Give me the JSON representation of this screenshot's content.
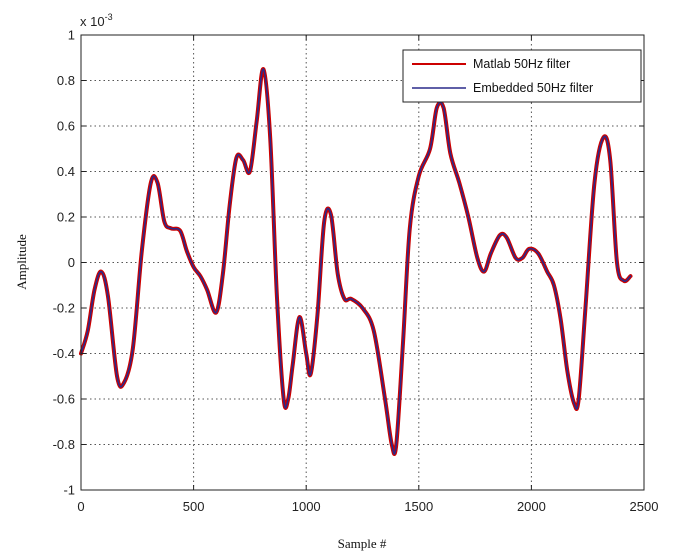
{
  "chart_data": {
    "type": "line",
    "title": "",
    "xlabel": "Sample #",
    "ylabel": "Amplitude",
    "y_scale_label": "x 10",
    "y_scale_exponent": "-3",
    "xlim": [
      0,
      2500
    ],
    "ylim": [
      -1,
      1
    ],
    "x_ticks": [
      0,
      500,
      1000,
      1500,
      2000,
      2500
    ],
    "x_tick_labels": [
      "0",
      "500",
      "1000",
      "1500",
      "2000",
      "2500"
    ],
    "y_ticks": [
      -1,
      -0.8,
      -0.6,
      -0.4,
      -0.2,
      0,
      0.2,
      0.4,
      0.6,
      0.8,
      1
    ],
    "y_tick_labels": [
      "-1",
      "-0.8",
      "-0.6",
      "-0.4",
      "-0.2",
      "0",
      "0.2",
      "0.4",
      "0.6",
      "0.8",
      "1"
    ],
    "grid": true,
    "legend_position": "top-right",
    "series": [
      {
        "name": "Matlab 50Hz filter",
        "color": "#cc0000",
        "x": [
          0,
          30,
          60,
          90,
          120,
          160,
          190,
          230,
          270,
          310,
          340,
          370,
          400,
          440,
          470,
          500,
          530,
          560,
          600,
          630,
          660,
          690,
          720,
          750,
          780,
          810,
          840,
          870,
          900,
          920,
          940,
          970,
          1000,
          1020,
          1050,
          1080,
          1110,
          1140,
          1170,
          1200,
          1250,
          1300,
          1350,
          1380,
          1400,
          1430,
          1460,
          1500,
          1550,
          1580,
          1610,
          1640,
          1680,
          1720,
          1760,
          1790,
          1820,
          1860,
          1890,
          1930,
          1960,
          1990,
          2030,
          2070,
          2100,
          2130,
          2160,
          2190,
          2210,
          2240,
          2280,
          2320,
          2350,
          2380,
          2410,
          2440
        ],
        "values": [
          -0.4,
          -0.3,
          -0.12,
          -0.04,
          -0.15,
          -0.5,
          -0.53,
          -0.38,
          0.05,
          0.35,
          0.35,
          0.18,
          0.15,
          0.14,
          0.05,
          -0.02,
          -0.06,
          -0.12,
          -0.22,
          -0.05,
          0.25,
          0.46,
          0.45,
          0.4,
          0.62,
          0.85,
          0.55,
          -0.15,
          -0.6,
          -0.6,
          -0.45,
          -0.24,
          -0.4,
          -0.49,
          -0.23,
          0.18,
          0.21,
          -0.05,
          -0.16,
          -0.16,
          -0.2,
          -0.3,
          -0.6,
          -0.8,
          -0.8,
          -0.35,
          0.15,
          0.38,
          0.5,
          0.68,
          0.68,
          0.48,
          0.35,
          0.2,
          0.02,
          -0.04,
          0.04,
          0.12,
          0.11,
          0.02,
          0.02,
          0.06,
          0.04,
          -0.04,
          -0.1,
          -0.25,
          -0.48,
          -0.62,
          -0.6,
          -0.2,
          0.35,
          0.55,
          0.45,
          0.0,
          -0.08,
          -0.06
        ]
      },
      {
        "name": "Embedded 50Hz filter",
        "color": "#2a2a8a",
        "x": [
          0,
          30,
          60,
          90,
          120,
          160,
          190,
          230,
          270,
          310,
          340,
          370,
          400,
          440,
          470,
          500,
          530,
          560,
          600,
          630,
          660,
          690,
          720,
          750,
          780,
          810,
          840,
          870,
          900,
          920,
          940,
          970,
          1000,
          1020,
          1050,
          1080,
          1110,
          1140,
          1170,
          1200,
          1250,
          1300,
          1350,
          1380,
          1400,
          1430,
          1460,
          1500,
          1550,
          1580,
          1610,
          1640,
          1680,
          1720,
          1760,
          1790,
          1820,
          1860,
          1890,
          1930,
          1960,
          1990,
          2030,
          2070,
          2100,
          2130,
          2160,
          2190,
          2210,
          2240,
          2280,
          2320,
          2350,
          2380,
          2410,
          2440
        ],
        "values": [
          -0.4,
          -0.3,
          -0.12,
          -0.04,
          -0.15,
          -0.5,
          -0.53,
          -0.38,
          0.05,
          0.35,
          0.35,
          0.18,
          0.15,
          0.14,
          0.05,
          -0.02,
          -0.06,
          -0.12,
          -0.22,
          -0.05,
          0.25,
          0.46,
          0.45,
          0.4,
          0.62,
          0.85,
          0.55,
          -0.15,
          -0.6,
          -0.6,
          -0.45,
          -0.24,
          -0.4,
          -0.49,
          -0.23,
          0.18,
          0.21,
          -0.05,
          -0.16,
          -0.16,
          -0.2,
          -0.3,
          -0.6,
          -0.8,
          -0.8,
          -0.35,
          0.15,
          0.38,
          0.5,
          0.68,
          0.68,
          0.48,
          0.35,
          0.2,
          0.02,
          -0.04,
          0.04,
          0.12,
          0.11,
          0.02,
          0.02,
          0.06,
          0.04,
          -0.04,
          -0.1,
          -0.25,
          -0.48,
          -0.62,
          -0.6,
          -0.2,
          0.35,
          0.55,
          0.45,
          0.0,
          -0.08,
          -0.06
        ]
      }
    ]
  }
}
